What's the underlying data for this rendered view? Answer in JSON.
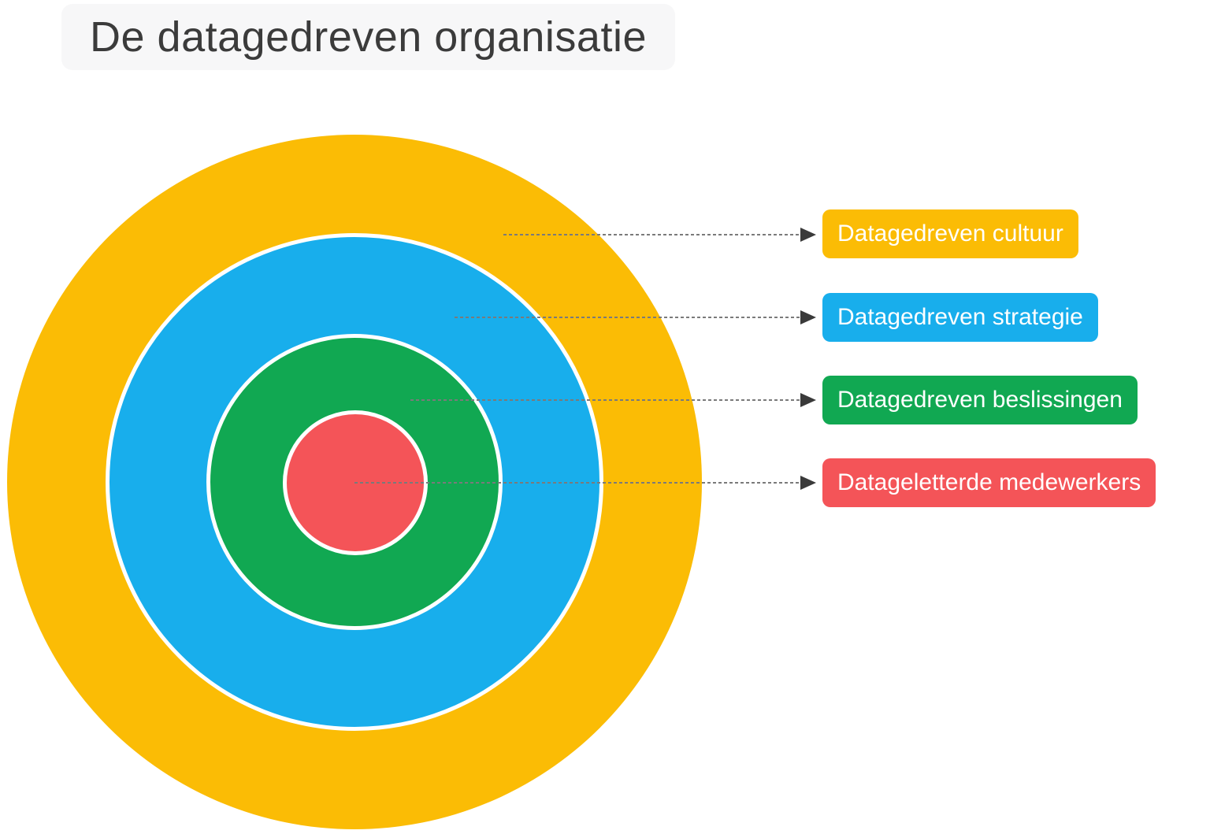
{
  "title": "De datagedreven organisatie",
  "rings": [
    {
      "id": "cultuur",
      "label": "Datagedreven cultuur",
      "color": "#FBBC05"
    },
    {
      "id": "strategie",
      "label": "Datagedreven strategie",
      "color": "#18AEEC"
    },
    {
      "id": "beslissingen",
      "label": "Datagedreven beslissingen",
      "color": "#11A852"
    },
    {
      "id": "medewerkers",
      "label": "Datageletterde medewerkers",
      "color": "#F45458"
    }
  ],
  "colors": {
    "background": "#FFFFFF",
    "ring_separator": "#FFFFFF",
    "connector_line": "#7A7A7A",
    "arrowhead": "#3A3A3A",
    "title_background": "#F7F7F8",
    "title_text": "#3B3B3B",
    "chip_text": "#FFFFFF"
  }
}
